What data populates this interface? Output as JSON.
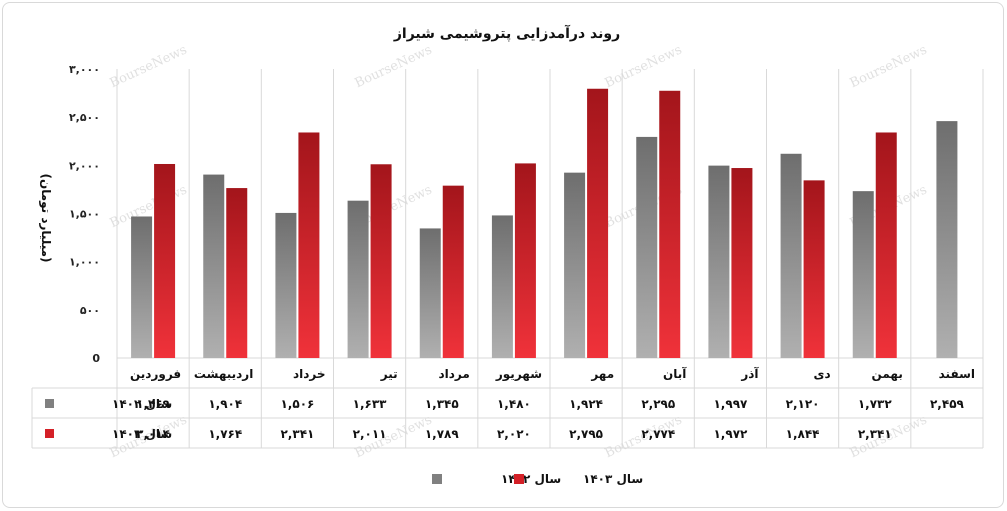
{
  "chart_data": {
    "type": "bar",
    "title": "روند درآمدزایی پتروشیمی شیراز",
    "ylabel": "(میلیارد تومان)",
    "xlabel": "",
    "ylim": [
      0,
      3000
    ],
    "yticks": [
      0,
      500,
      1000,
      1500,
      2000,
      2500,
      3000
    ],
    "ytick_labels": [
      "0",
      "۵۰۰",
      "۱,۰۰۰",
      "۱,۵۰۰",
      "۲,۰۰۰",
      "۲,۵۰۰",
      "۳,۰۰۰"
    ],
    "grid": "vertical-category-lines",
    "legend_position": "bottom",
    "categories": [
      "فروردین",
      "اردیبهشت",
      "خرداد",
      "تیر",
      "مرداد",
      "شهریور",
      "مهر",
      "آبان",
      "آذر",
      "دی",
      "بهمن",
      "اسفند"
    ],
    "series": [
      {
        "name": "سال ۱۴۰۲",
        "color": "#808080",
        "values": [
          1469,
          1904,
          1506,
          1633,
          1345,
          1480,
          1924,
          2295,
          1997,
          2120,
          1732,
          2459
        ],
        "labels": [
          "۱,۴۶۹",
          "۱,۹۰۴",
          "۱,۵۰۶",
          "۱,۶۳۳",
          "۱,۳۴۵",
          "۱,۴۸۰",
          "۱,۹۲۴",
          "۲,۲۹۵",
          "۱,۹۹۷",
          "۲,۱۲۰",
          "۱,۷۳۲",
          "۲,۴۵۹"
        ]
      },
      {
        "name": "سال ۱۴۰۳",
        "color": "#d42027",
        "values": [
          2014,
          1764,
          2341,
          2011,
          1789,
          2020,
          2795,
          2774,
          1972,
          1844,
          2341,
          null
        ],
        "labels": [
          "۲,۰۱۴",
          "۱,۷۶۴",
          "۲,۳۴۱",
          "۲,۰۱۱",
          "۱,۷۸۹",
          "۲,۰۲۰",
          "۲,۷۹۵",
          "۲,۷۷۴",
          "۱,۹۷۲",
          "۱,۸۴۴",
          "۲,۳۴۱",
          ""
        ]
      }
    ],
    "watermark": "BourseNews"
  }
}
